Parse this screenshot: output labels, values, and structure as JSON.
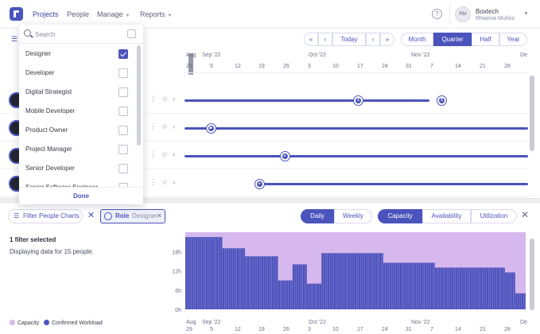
{
  "nav": {
    "items": [
      {
        "label": "Projects",
        "has_caret": false,
        "active": true
      },
      {
        "label": "People",
        "has_caret": false,
        "active": false
      },
      {
        "label": "Manage",
        "has_caret": true,
        "active": false
      },
      {
        "label": "Reports",
        "has_caret": true,
        "active": false
      }
    ],
    "help_icon": "?",
    "user": {
      "initials": "RM",
      "company": "Boxtech",
      "name": "Rhianna Muñoz"
    }
  },
  "timeline_controls": {
    "today_label": "Today",
    "scales": [
      {
        "label": "Month",
        "active": false
      },
      {
        "label": "Quarter",
        "active": true
      },
      {
        "label": "Half",
        "active": false
      },
      {
        "label": "Year",
        "active": false
      }
    ]
  },
  "timeline": {
    "months": [
      "Aug",
      "Sep '22",
      "Oct '22",
      "Nov '22",
      "De"
    ],
    "days": [
      "29",
      "5",
      "12",
      "19",
      "26",
      "3",
      "10",
      "17",
      "24",
      "31",
      "7",
      "14",
      "21",
      "28"
    ],
    "days_partial": "De"
  },
  "dropdown": {
    "search_placeholder": "Search",
    "items": [
      {
        "label": "Designer",
        "checked": true
      },
      {
        "label": "Developer",
        "checked": false
      },
      {
        "label": "Digital Strategist",
        "checked": false
      },
      {
        "label": "Mobile Developer",
        "checked": false
      },
      {
        "label": "Product Owner",
        "checked": false
      },
      {
        "label": "Project Manager",
        "checked": false
      },
      {
        "label": "Senior Developer",
        "checked": false
      },
      {
        "label": "Senior Software Engineer",
        "checked": false
      }
    ],
    "done_label": "Done"
  },
  "filter_bar": {
    "filter_people_label": "Filter People Charts",
    "chip_label": "Role",
    "chip_value": "Designer",
    "period_options": [
      {
        "label": "Daily",
        "active": true
      },
      {
        "label": "Weekly",
        "active": false
      }
    ],
    "view_options": [
      {
        "label": "Capacity",
        "active": true
      },
      {
        "label": "Availability",
        "active": false
      },
      {
        "label": "Utilization",
        "active": false
      }
    ]
  },
  "summary": {
    "filter_count": "1 filter selected",
    "display_note": "Displaying data for 15 people."
  },
  "legend": [
    {
      "label": "Capacity",
      "color": "#d7b8ee"
    },
    {
      "label": "Confirmed Workload",
      "color": "#4b53bc"
    }
  ],
  "chart_data": {
    "type": "bar",
    "title": "",
    "ylabel": "",
    "yticks": [
      "0h",
      "6h",
      "12h",
      "18h"
    ],
    "ylim": [
      0,
      24
    ],
    "series": [
      {
        "name": "Capacity",
        "values": [
          24
        ]
      },
      {
        "name": "Confirmed Workload",
        "values": [
          22.5,
          22.5,
          22.5,
          22.5,
          22.5,
          22.5,
          22.5,
          22.5,
          22.5,
          22.5,
          22.5,
          22.5,
          22.5,
          22.5,
          22.5,
          22.5,
          22.5,
          22.5,
          19,
          19,
          19,
          19,
          19,
          19,
          19,
          19,
          19,
          19,
          19,
          16.5,
          16.5,
          16.5,
          16.5,
          16.5,
          16.5,
          16.5,
          16.5,
          16.5,
          16.5,
          16.5,
          16.5,
          16.5,
          16.5,
          16.5,
          16.5,
          9,
          9,
          9,
          9,
          9,
          9,
          9,
          14,
          14,
          14,
          14,
          14,
          14,
          14,
          8,
          8,
          8,
          8,
          8,
          8,
          8,
          17.5,
          17.5,
          17.5,
          17.5,
          17.5,
          17.5,
          17.5,
          17.5,
          17.5,
          17.5,
          17.5,
          17.5,
          17.5,
          17.5,
          17.5,
          17.5,
          17.5,
          17.5,
          17.5,
          17.5,
          17.5,
          17.5,
          17.5,
          17.5,
          17.5,
          17.5,
          17.5,
          17.5,
          17.5,
          17.5,
          14.5,
          14.5,
          14.5,
          14.5,
          14.5,
          14.5,
          14.5,
          14.5,
          14.5,
          14.5,
          14.5,
          14.5,
          14.5,
          14.5,
          14.5,
          14.5,
          14.5,
          14.5,
          14.5,
          14.5,
          14.5,
          14.5,
          14.5,
          14.5,
          14.5,
          13,
          13,
          13,
          13,
          13,
          13,
          13,
          13,
          13,
          13,
          13,
          13,
          13,
          13,
          13,
          13,
          13,
          13,
          13,
          13,
          13,
          13,
          13,
          13,
          13,
          13,
          13,
          13,
          13,
          13,
          13,
          13,
          13,
          13,
          11.5,
          11.5,
          11.5,
          11.5,
          11.5,
          5,
          5,
          5,
          5,
          5
        ]
      }
    ]
  }
}
